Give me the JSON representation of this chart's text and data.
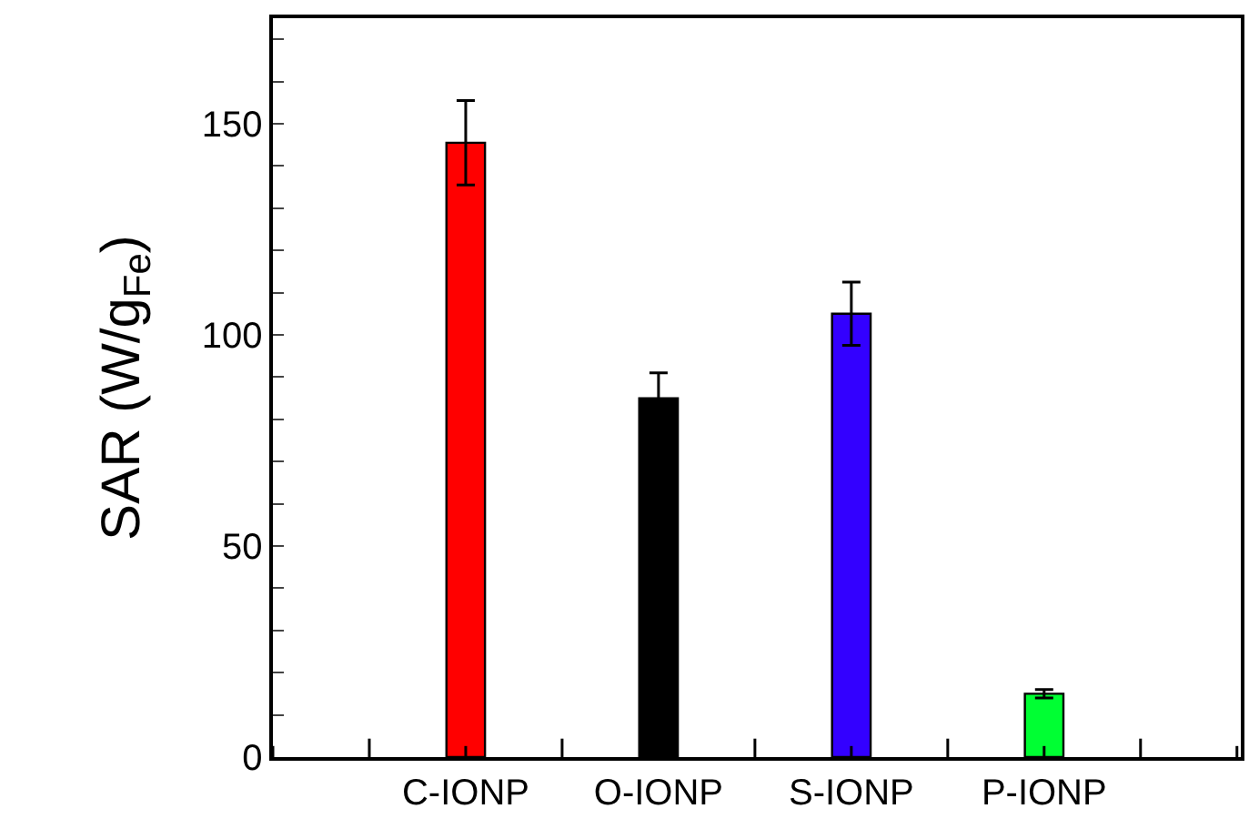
{
  "chart_data": {
    "type": "bar",
    "ylabel": "SAR (W/g$_{Fe}$)",
    "categories": [
      "C-IONP",
      "O-IONP",
      "S-IONP",
      "P-IONP",
      null
    ],
    "values": [
      145.5,
      85,
      105,
      15,
      null
    ],
    "errors": [
      10,
      6,
      7.5,
      1,
      null
    ],
    "colors": [
      "#ff0000",
      "#000000",
      "#3300ff",
      "#00ff33",
      "#000000"
    ],
    "ylim": [
      0,
      175
    ],
    "yticks": [
      0,
      {
        "value": 10,
        "label": null
      },
      {
        "value": 20,
        "label": null
      },
      {
        "value": 30,
        "label": null
      },
      {
        "value": 40,
        "label": null
      },
      50,
      {
        "value": 60,
        "label": null
      },
      {
        "value": 70,
        "label": null
      },
      {
        "value": 80,
        "label": null
      },
      {
        "value": 90,
        "label": null
      },
      100,
      {
        "value": 110,
        "label": null
      },
      {
        "value": 120,
        "label": null
      },
      {
        "value": 130,
        "label": null
      },
      {
        "value": 140,
        "label": null
      },
      150,
      {
        "value": 160,
        "label": null
      },
      {
        "value": 170,
        "label": null
      }
    ]
  }
}
